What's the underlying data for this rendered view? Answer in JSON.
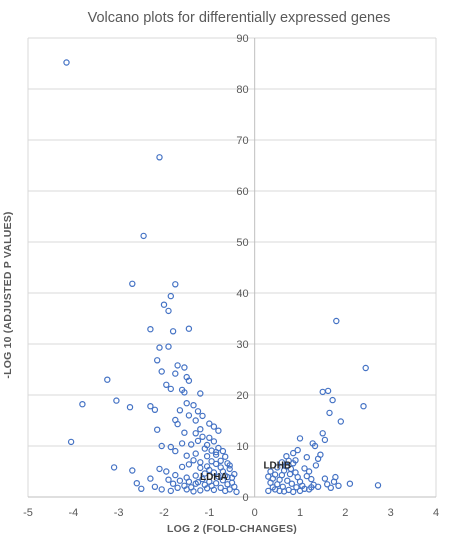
{
  "chart_data": {
    "type": "scatter",
    "title": "Volcano plots for differentially expressed genes",
    "xlabel": "LOG 2 (FOLD-CHANGES)",
    "ylabel": "-LOG 10 (ADJUSTED P VALUES)",
    "xlim": [
      -5,
      4
    ],
    "ylim": [
      0,
      90
    ],
    "xticks": [
      -5,
      -4,
      -3,
      -2,
      -1,
      0,
      1,
      2,
      3,
      4
    ],
    "yticks": [
      0,
      10,
      20,
      30,
      40,
      50,
      60,
      70,
      80,
      90
    ],
    "grid": true,
    "legend": "none",
    "marker_color": "#4472c4",
    "series": [
      {
        "points": [
          [
            -4.15,
            85.2
          ],
          [
            -2.1,
            66.6
          ],
          [
            -2.45,
            51.2
          ],
          [
            -2.7,
            41.8
          ],
          [
            -1.75,
            41.7
          ],
          [
            -1.85,
            39.4
          ],
          [
            -2.0,
            37.7
          ],
          [
            -1.9,
            36.5
          ],
          [
            -2.3,
            32.9
          ],
          [
            -1.45,
            33.0
          ],
          [
            -1.8,
            32.5
          ],
          [
            -2.1,
            29.3
          ],
          [
            -1.9,
            29.5
          ],
          [
            -2.15,
            26.8
          ],
          [
            -1.7,
            25.8
          ],
          [
            -1.55,
            25.4
          ],
          [
            -2.05,
            24.6
          ],
          [
            -1.75,
            24.2
          ],
          [
            -1.5,
            23.5
          ],
          [
            -1.45,
            22.8
          ],
          [
            -1.95,
            22.0
          ],
          [
            -1.85,
            21.2
          ],
          [
            -1.6,
            21.0
          ],
          [
            -1.2,
            20.3
          ],
          [
            -1.55,
            20.5
          ],
          [
            -3.25,
            23.0
          ],
          [
            -3.05,
            18.9
          ],
          [
            -3.8,
            18.2
          ],
          [
            -2.75,
            17.6
          ],
          [
            -2.3,
            17.8
          ],
          [
            -2.2,
            17.1
          ],
          [
            -1.5,
            18.4
          ],
          [
            -1.35,
            18.0
          ],
          [
            -1.25,
            16.8
          ],
          [
            -1.45,
            16.0
          ],
          [
            -1.65,
            17.0
          ],
          [
            -1.15,
            15.9
          ],
          [
            -1.3,
            15.0
          ],
          [
            -1.75,
            15.1
          ],
          [
            -1.7,
            14.3
          ],
          [
            -1.0,
            14.4
          ],
          [
            -0.9,
            13.8
          ],
          [
            -1.2,
            13.3
          ],
          [
            -0.8,
            13.0
          ],
          [
            -2.15,
            13.2
          ],
          [
            -1.3,
            12.5
          ],
          [
            -1.55,
            12.6
          ],
          [
            -1.15,
            11.8
          ],
          [
            -1.0,
            11.6
          ],
          [
            -0.9,
            10.9
          ],
          [
            -4.05,
            10.8
          ],
          [
            -2.05,
            10.0
          ],
          [
            -1.85,
            9.8
          ],
          [
            -1.6,
            10.5
          ],
          [
            -1.4,
            10.3
          ],
          [
            -1.1,
            9.5
          ],
          [
            -0.95,
            9.1
          ],
          [
            -0.8,
            9.6
          ],
          [
            -0.7,
            9.0
          ],
          [
            -1.75,
            9.0
          ],
          [
            -1.3,
            8.5
          ],
          [
            -1.5,
            8.1
          ],
          [
            -1.05,
            8.0
          ],
          [
            -0.85,
            8.3
          ],
          [
            -0.65,
            7.9
          ],
          [
            -3.1,
            5.8
          ],
          [
            -2.7,
            5.2
          ],
          [
            -2.1,
            5.5
          ],
          [
            -1.95,
            5.0
          ],
          [
            -2.3,
            3.6
          ],
          [
            -2.6,
            2.7
          ],
          [
            -2.5,
            1.6
          ],
          [
            -2.2,
            2.0
          ],
          [
            -2.05,
            1.5
          ],
          [
            -1.9,
            3.4
          ],
          [
            -1.75,
            4.3
          ],
          [
            -1.6,
            5.9
          ],
          [
            -1.45,
            6.4
          ],
          [
            -1.35,
            7.2
          ],
          [
            -1.2,
            6.8
          ],
          [
            -1.05,
            6.0
          ],
          [
            -0.95,
            7.0
          ],
          [
            -0.85,
            6.5
          ],
          [
            -0.75,
            7.1
          ],
          [
            -0.6,
            6.6
          ],
          [
            -0.55,
            5.5
          ],
          [
            -0.7,
            5.0
          ],
          [
            -0.9,
            4.8
          ],
          [
            -1.1,
            4.6
          ],
          [
            -1.3,
            4.2
          ],
          [
            -1.5,
            3.8
          ],
          [
            -1.65,
            3.2
          ],
          [
            -1.8,
            2.6
          ],
          [
            -1.55,
            2.2
          ],
          [
            -1.4,
            1.9
          ],
          [
            -1.25,
            2.9
          ],
          [
            -1.15,
            3.5
          ],
          [
            -1.0,
            3.0
          ],
          [
            -0.85,
            2.7
          ],
          [
            -0.7,
            3.3
          ],
          [
            -0.6,
            2.5
          ],
          [
            -0.5,
            3.8
          ],
          [
            -0.45,
            2.0
          ],
          [
            -0.55,
            1.5
          ],
          [
            -0.65,
            1.2
          ],
          [
            -0.75,
            1.8
          ],
          [
            -0.9,
            1.4
          ],
          [
            -1.05,
            1.7
          ],
          [
            -1.2,
            1.3
          ],
          [
            -1.35,
            1.1
          ],
          [
            -1.5,
            1.5
          ],
          [
            -1.7,
            1.8
          ],
          [
            -1.85,
            1.2
          ],
          [
            -0.4,
            1.0
          ],
          [
            -0.45,
            4.5
          ],
          [
            -0.8,
            4.0
          ],
          [
            -1.0,
            5.3
          ],
          [
            -1.2,
            5.7
          ],
          [
            -0.65,
            4.2
          ],
          [
            -0.95,
            2.2
          ],
          [
            -1.1,
            2.4
          ],
          [
            -1.3,
            2.6
          ],
          [
            -1.45,
            3.0
          ],
          [
            -0.5,
            2.8
          ],
          [
            -0.6,
            3.9
          ],
          [
            -0.75,
            5.8
          ],
          [
            -0.85,
            8.8
          ],
          [
            -1.05,
            10.2
          ],
          [
            -1.25,
            11.0
          ],
          [
            -0.55,
            6.2
          ],
          [
            0.5,
            2.5
          ],
          [
            0.45,
            1.5
          ],
          [
            0.4,
            1.9
          ],
          [
            0.35,
            2.8
          ],
          [
            0.3,
            1.2
          ],
          [
            0.55,
            3.4
          ],
          [
            0.6,
            4.3
          ],
          [
            0.65,
            5.2
          ],
          [
            0.7,
            6.0
          ],
          [
            0.75,
            7.1
          ],
          [
            0.8,
            5.5
          ],
          [
            0.85,
            6.6
          ],
          [
            0.9,
            4.8
          ],
          [
            0.95,
            3.9
          ],
          [
            1.0,
            3.0
          ],
          [
            1.05,
            2.2
          ],
          [
            1.1,
            1.6
          ],
          [
            0.62,
            2.0
          ],
          [
            0.72,
            3.2
          ],
          [
            0.82,
            2.6
          ],
          [
            0.92,
            1.9
          ],
          [
            1.15,
            4.1
          ],
          [
            1.2,
            5.0
          ],
          [
            1.25,
            3.5
          ],
          [
            1.3,
            2.4
          ],
          [
            1.35,
            6.2
          ],
          [
            1.4,
            7.5
          ],
          [
            1.45,
            8.3
          ],
          [
            1.5,
            12.5
          ],
          [
            1.55,
            11.2
          ],
          [
            1.28,
            10.5
          ],
          [
            1.33,
            10.0
          ],
          [
            1.0,
            11.5
          ],
          [
            0.95,
            9.2
          ],
          [
            0.7,
            8.0
          ],
          [
            0.85,
            8.6
          ],
          [
            0.6,
            6.8
          ],
          [
            0.5,
            5.8
          ],
          [
            0.45,
            4.4
          ],
          [
            0.4,
            3.6
          ],
          [
            0.55,
            1.2
          ],
          [
            0.65,
            1.1
          ],
          [
            0.75,
            1.4
          ],
          [
            0.85,
            1.0
          ],
          [
            1.0,
            1.2
          ],
          [
            1.2,
            1.5
          ],
          [
            1.4,
            2.0
          ],
          [
            1.6,
            2.5
          ],
          [
            1.75,
            3.0
          ],
          [
            1.85,
            2.2
          ],
          [
            1.8,
            34.5
          ],
          [
            2.45,
            25.3
          ],
          [
            1.62,
            20.8
          ],
          [
            1.5,
            20.6
          ],
          [
            1.72,
            19.0
          ],
          [
            1.65,
            16.5
          ],
          [
            2.4,
            17.8
          ],
          [
            1.9,
            14.8
          ],
          [
            2.1,
            2.6
          ],
          [
            2.72,
            2.3
          ],
          [
            1.55,
            3.6
          ],
          [
            1.68,
            1.8
          ],
          [
            1.78,
            3.9
          ],
          [
            1.25,
            1.9
          ],
          [
            1.1,
            5.6
          ],
          [
            0.3,
            4.0
          ],
          [
            0.35,
            5.0
          ],
          [
            0.9,
            7.2
          ],
          [
            0.78,
            4.5
          ],
          [
            1.15,
            7.8
          ]
        ]
      }
    ],
    "annotations": [
      {
        "text": "LDHA",
        "x": -0.9,
        "y": 3.3
      },
      {
        "text": "LDHB",
        "x": 0.5,
        "y": 5.6
      }
    ]
  }
}
